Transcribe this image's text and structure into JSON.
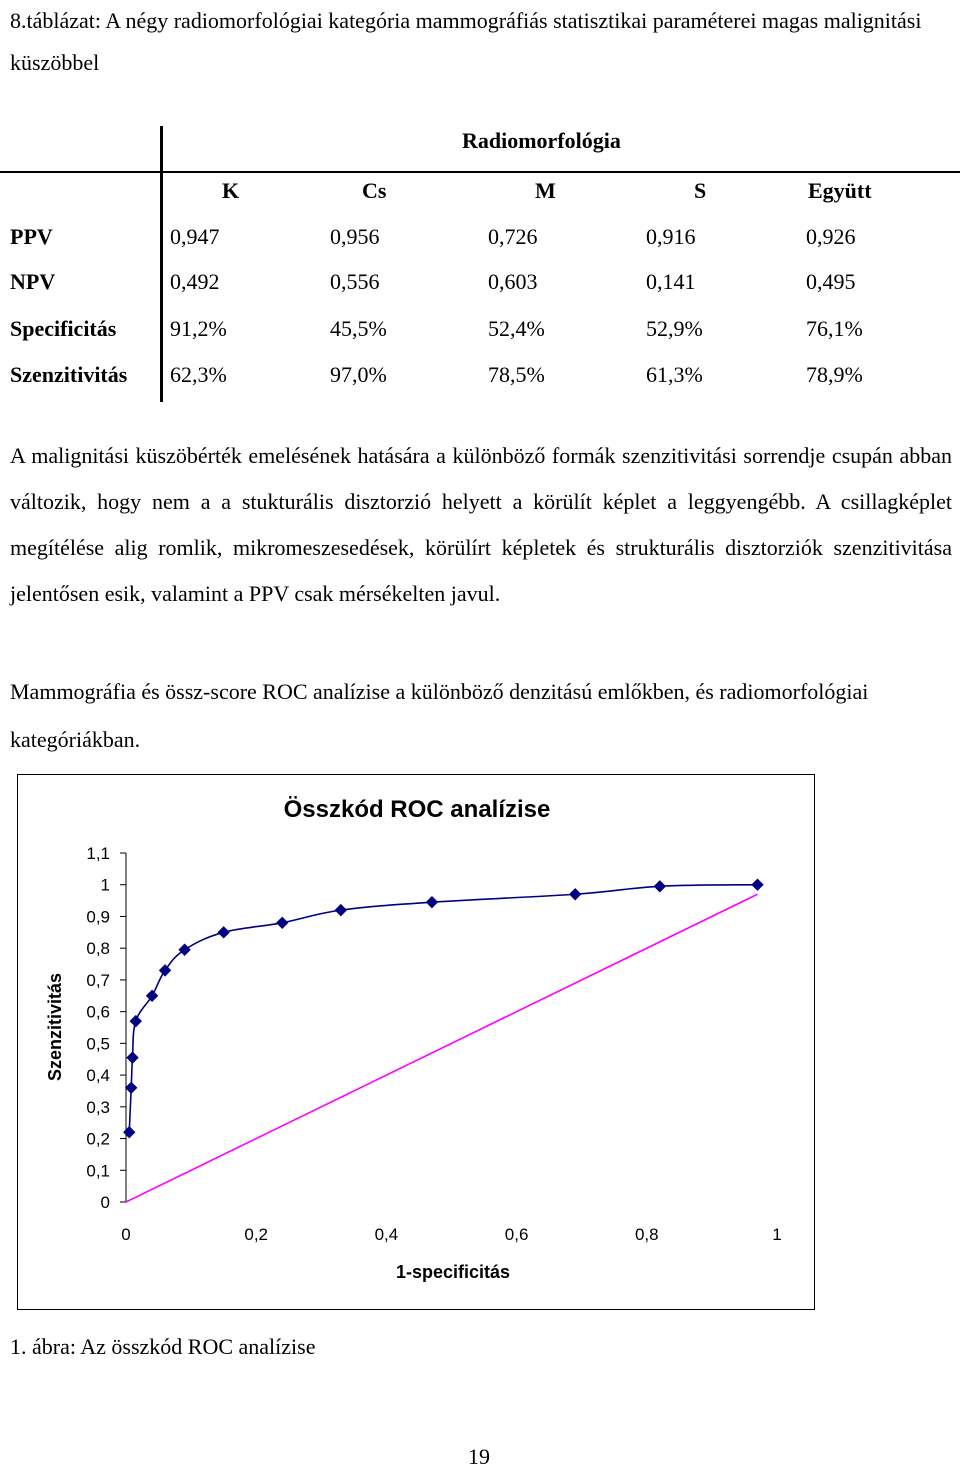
{
  "caption": "8.táblázat: A négy radiomorfológiai kategória mammográfiás statisztikai paraméterei magas malignitási küszöbbel",
  "table": {
    "group_header": "Radiomorfológia",
    "columns": [
      "K",
      "Cs",
      "M",
      "S",
      "Együtt"
    ],
    "rows": [
      {
        "label": "PPV",
        "values": [
          "0,947",
          "0,956",
          "0,726",
          "0,916",
          "0,926"
        ]
      },
      {
        "label": "NPV",
        "values": [
          "0,492",
          "0,556",
          "0,603",
          "0,141",
          "0,495"
        ]
      },
      {
        "label": "Specificitás",
        "values": [
          "91,2%",
          "45,5%",
          "52,4%",
          "52,9%",
          "76,1%"
        ]
      },
      {
        "label": "Szenzitivitás",
        "values": [
          "62,3%",
          "97,0%",
          "78,5%",
          "61,3%",
          "78,9%"
        ]
      }
    ]
  },
  "paragraph1": "A malignitási küszöbérték emelésének hatására a különböző formák szenzitivitási sorrendje csupán abban változik, hogy nem a a stukturális disztorzió helyett a körülít képlet a leggyengébb. A csillagképlet megítélése alig romlik, mikromeszesedések, körülírt képletek és strukturális disztorziók szenzitivitása jelentősen esik, valamint a PPV csak mérsékelten javul.",
  "paragraph2": "Mammográfia és össz-score ROC analízise a különböző denzitású emlőkben, és radiomorfológiai kategóriákban.",
  "chart_data": {
    "type": "line",
    "title": "Összkód ROC analízise",
    "xlabel": "1-specificitás",
    "ylabel": "Szenzitivitás",
    "xlim": [
      0,
      1
    ],
    "ylim": [
      0,
      1.1
    ],
    "x_ticks": [
      "0",
      "0,2",
      "0,4",
      "0,6",
      "0,8",
      "1"
    ],
    "y_ticks": [
      "0",
      "0,1",
      "0,2",
      "0,3",
      "0,4",
      "0,5",
      "0,6",
      "0,7",
      "0,8",
      "0,9",
      "1",
      "1,1"
    ],
    "series": [
      {
        "color": "#000080",
        "marker": "diamond",
        "x": [
          0.005,
          0.008,
          0.01,
          0.015,
          0.04,
          0.06,
          0.09,
          0.15,
          0.24,
          0.33,
          0.47,
          0.69,
          0.82,
          0.97
        ],
        "y": [
          0.22,
          0.36,
          0.455,
          0.57,
          0.65,
          0.73,
          0.795,
          0.85,
          0.88,
          0.92,
          0.945,
          0.97,
          0.995,
          1.0
        ]
      },
      {
        "color": "#FF00FF",
        "marker": "none",
        "x": [
          0.0,
          0.97
        ],
        "y": [
          0.0,
          0.97
        ]
      }
    ]
  },
  "figure_caption": "1. ábra:  Az összkód ROC analízise",
  "page_number": "19"
}
